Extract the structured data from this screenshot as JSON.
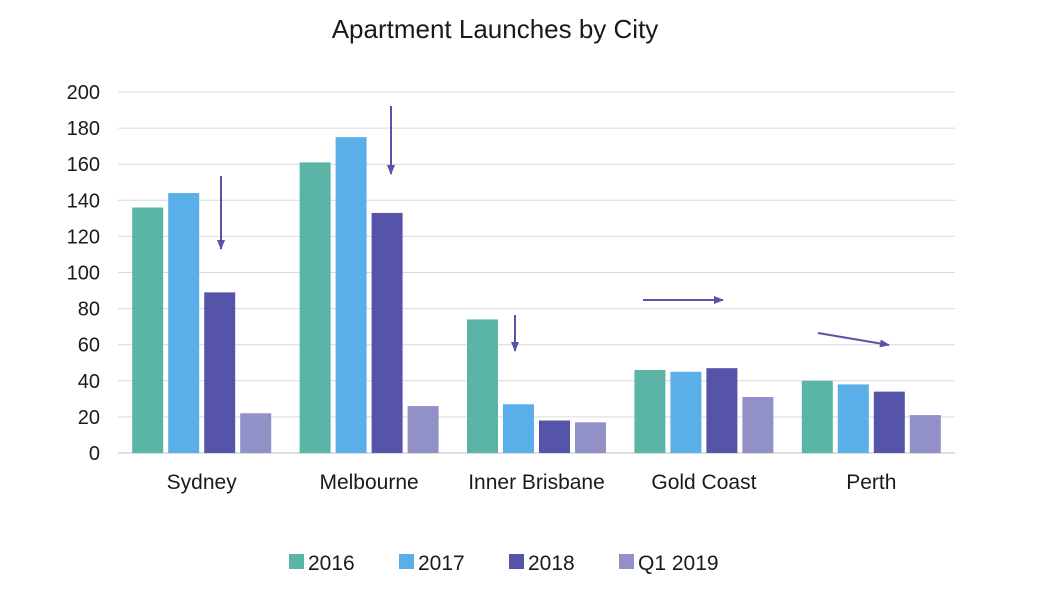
{
  "chart_data": {
    "type": "bar",
    "title": "Apartment Launches by City",
    "xlabel": "",
    "ylabel": "",
    "ylim": [
      0,
      200
    ],
    "yticks": [
      0,
      20,
      40,
      60,
      80,
      100,
      120,
      140,
      160,
      180,
      200
    ],
    "grid": true,
    "legend_position": "bottom",
    "categories": [
      "Sydney",
      "Melbourne",
      "Inner Brisbane",
      "Gold Coast",
      "Perth"
    ],
    "series": [
      {
        "name": "2016",
        "color": "#5BB5A6",
        "values": [
          136,
          161,
          74,
          46,
          40
        ]
      },
      {
        "name": "2017",
        "color": "#5AAFE9",
        "values": [
          144,
          175,
          27,
          45,
          38
        ]
      },
      {
        "name": "2018",
        "color": "#5654A8",
        "values": [
          89,
          133,
          18,
          47,
          34
        ]
      },
      {
        "name": "Q1 2019",
        "color": "#9190C7",
        "values": [
          22,
          26,
          17,
          31,
          21
        ]
      }
    ],
    "annotations": [
      {
        "type": "arrow",
        "direction": "down",
        "category": "Sydney",
        "color": "#5654A8"
      },
      {
        "type": "arrow",
        "direction": "down",
        "category": "Melbourne",
        "color": "#5654A8"
      },
      {
        "type": "arrow",
        "direction": "down",
        "category": "Inner Brisbane",
        "color": "#5654A8"
      },
      {
        "type": "arrow",
        "direction": "right",
        "category": "Gold Coast",
        "color": "#5654A8"
      },
      {
        "type": "arrow",
        "direction": "down-right",
        "category": "Perth",
        "color": "#5654A8"
      }
    ]
  }
}
